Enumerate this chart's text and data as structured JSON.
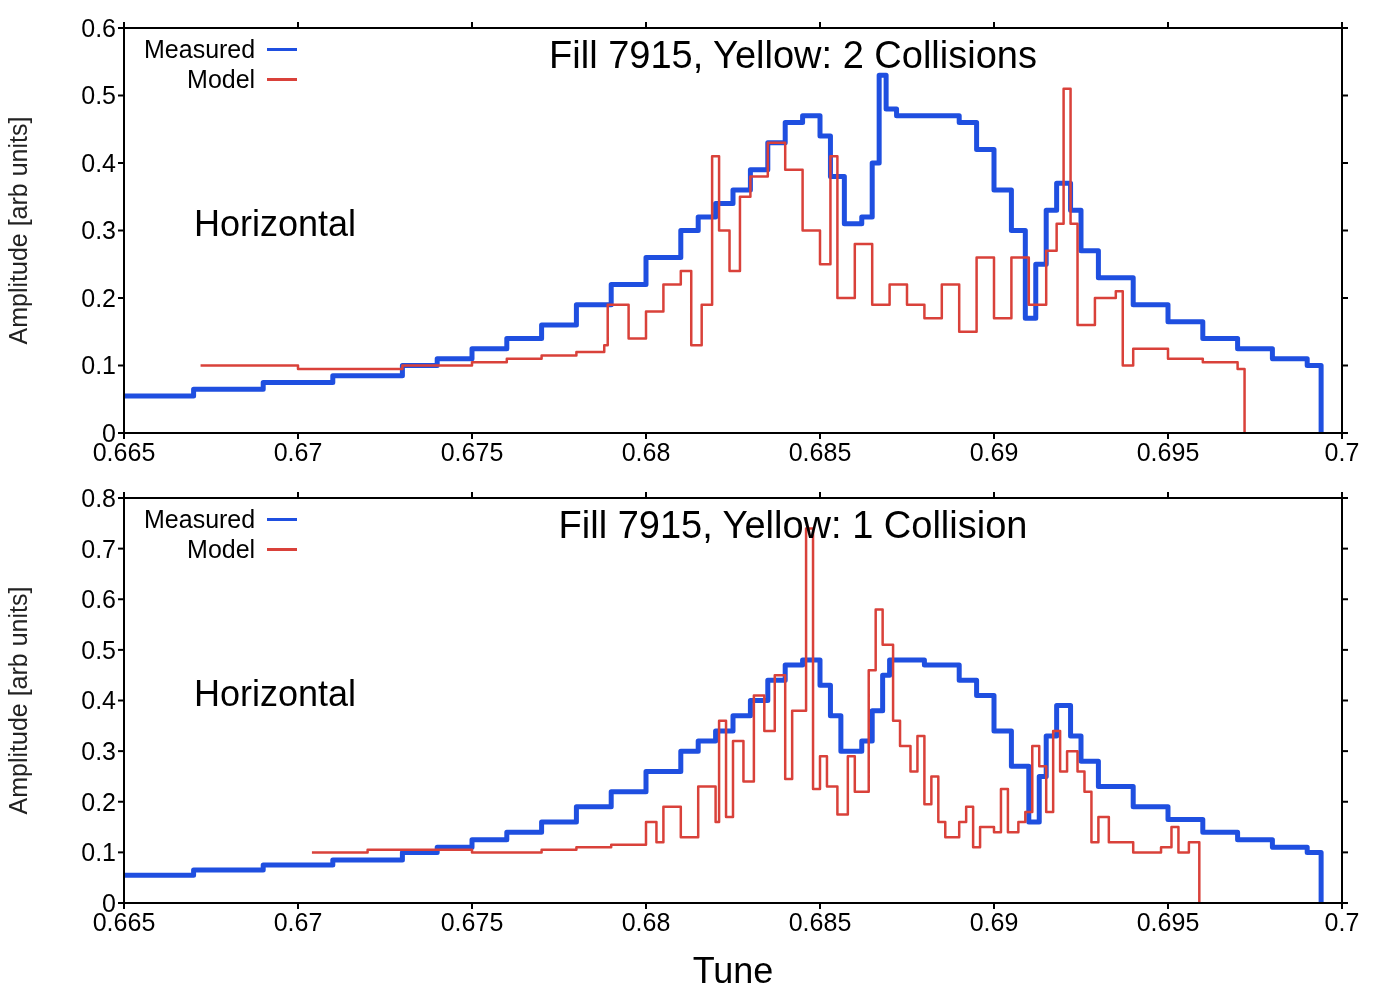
{
  "chart_data": [
    {
      "type": "step",
      "title": "Fill 7915, Yellow: 2 Collisions",
      "ylabel": "Amplitude [arb units]",
      "annotations": [
        "Horizontal"
      ],
      "legend": "top left",
      "xlim": [
        0.665,
        0.7
      ],
      "xticks": [
        0.665,
        0.67,
        0.675,
        0.68,
        0.685,
        0.69,
        0.695,
        0.7
      ],
      "ylim": [
        0,
        0.6
      ],
      "yticks": [
        0,
        0.1,
        0.2,
        0.3,
        0.4,
        0.5,
        0.6
      ],
      "series": [
        {
          "name": "Measured",
          "color": "#1f4fe0",
          "x": [
            0.665,
            0.667,
            0.669,
            0.671,
            0.673,
            0.674,
            0.675,
            0.676,
            0.677,
            0.678,
            0.679,
            0.68,
            0.681,
            0.6815,
            0.682,
            0.6825,
            0.683,
            0.6835,
            0.684,
            0.6845,
            0.685,
            0.6853,
            0.6857,
            0.6862,
            0.6865,
            0.6867,
            0.6869,
            0.6872,
            0.689,
            0.6895,
            0.69,
            0.6905,
            0.6909,
            0.6912,
            0.6915,
            0.6918,
            0.6922,
            0.6925,
            0.693,
            0.694,
            0.695,
            0.696,
            0.697,
            0.698,
            0.699,
            0.6994
          ],
          "values": [
            0.055,
            0.065,
            0.075,
            0.085,
            0.1,
            0.11,
            0.125,
            0.14,
            0.16,
            0.19,
            0.22,
            0.26,
            0.3,
            0.32,
            0.34,
            0.36,
            0.39,
            0.43,
            0.46,
            0.47,
            0.44,
            0.38,
            0.31,
            0.32,
            0.4,
            0.53,
            0.48,
            0.47,
            0.46,
            0.42,
            0.36,
            0.3,
            0.17,
            0.25,
            0.33,
            0.37,
            0.33,
            0.27,
            0.23,
            0.19,
            0.165,
            0.14,
            0.125,
            0.11,
            0.1,
            0
          ]
        },
        {
          "name": "Model",
          "color": "#d9413a",
          "x": [
            0.6672,
            0.67,
            0.673,
            0.675,
            0.676,
            0.677,
            0.678,
            0.6788,
            0.6789,
            0.6795,
            0.68,
            0.6805,
            0.681,
            0.6813,
            0.6816,
            0.6819,
            0.6821,
            0.6824,
            0.6827,
            0.683,
            0.6835,
            0.684,
            0.6845,
            0.685,
            0.6853,
            0.6855,
            0.686,
            0.6865,
            0.687,
            0.6875,
            0.688,
            0.6885,
            0.689,
            0.6895,
            0.69,
            0.6905,
            0.691,
            0.6915,
            0.6918,
            0.692,
            0.6922,
            0.6924,
            0.6929,
            0.6935,
            0.6937,
            0.694,
            0.695,
            0.696,
            0.697,
            0.6972
          ],
          "values": [
            0.1,
            0.095,
            0.1,
            0.105,
            0.11,
            0.115,
            0.12,
            0.13,
            0.19,
            0.14,
            0.18,
            0.22,
            0.24,
            0.13,
            0.19,
            0.41,
            0.3,
            0.24,
            0.35,
            0.38,
            0.43,
            0.39,
            0.3,
            0.25,
            0.41,
            0.2,
            0.28,
            0.19,
            0.22,
            0.19,
            0.17,
            0.22,
            0.15,
            0.26,
            0.17,
            0.26,
            0.19,
            0.27,
            0.31,
            0.51,
            0.31,
            0.16,
            0.2,
            0.21,
            0.1,
            0.125,
            0.11,
            0.105,
            0.095,
            0
          ]
        }
      ]
    },
    {
      "type": "step",
      "title": "Fill 7915, Yellow: 1 Collision",
      "xlabel": "Tune",
      "ylabel": "Amplitude [arb units]",
      "annotations": [
        "Horizontal"
      ],
      "legend": "top left",
      "xlim": [
        0.665,
        0.7
      ],
      "xticks": [
        0.665,
        0.67,
        0.675,
        0.68,
        0.685,
        0.69,
        0.695,
        0.7
      ],
      "ylim": [
        0,
        0.8
      ],
      "yticks": [
        0,
        0.1,
        0.2,
        0.3,
        0.4,
        0.5,
        0.6,
        0.7,
        0.8
      ],
      "series": [
        {
          "name": "Measured",
          "color": "#1f4fe0",
          "x": [
            0.665,
            0.667,
            0.669,
            0.671,
            0.673,
            0.674,
            0.675,
            0.676,
            0.677,
            0.678,
            0.679,
            0.68,
            0.681,
            0.6815,
            0.682,
            0.6825,
            0.683,
            0.6835,
            0.684,
            0.6845,
            0.685,
            0.6853,
            0.6856,
            0.6862,
            0.6865,
            0.6868,
            0.687,
            0.688,
            0.689,
            0.6895,
            0.69,
            0.6905,
            0.691,
            0.6913,
            0.6915,
            0.6918,
            0.6922,
            0.6925,
            0.693,
            0.694,
            0.695,
            0.696,
            0.697,
            0.698,
            0.699,
            0.6994
          ],
          "values": [
            0.055,
            0.065,
            0.075,
            0.085,
            0.1,
            0.11,
            0.125,
            0.14,
            0.16,
            0.19,
            0.22,
            0.26,
            0.3,
            0.32,
            0.34,
            0.37,
            0.4,
            0.44,
            0.47,
            0.48,
            0.43,
            0.37,
            0.3,
            0.32,
            0.38,
            0.45,
            0.48,
            0.47,
            0.44,
            0.41,
            0.34,
            0.27,
            0.16,
            0.25,
            0.33,
            0.39,
            0.33,
            0.28,
            0.23,
            0.19,
            0.165,
            0.14,
            0.125,
            0.11,
            0.1,
            0
          ]
        },
        {
          "name": "Model",
          "color": "#d9413a",
          "x": [
            0.6704,
            0.672,
            0.675,
            0.677,
            0.678,
            0.679,
            0.68,
            0.6803,
            0.6805,
            0.681,
            0.6815,
            0.682,
            0.6821,
            0.6823,
            0.6825,
            0.6828,
            0.6831,
            0.6834,
            0.6837,
            0.684,
            0.6842,
            0.6846,
            0.6848,
            0.685,
            0.6852,
            0.6855,
            0.6858,
            0.686,
            0.6864,
            0.6866,
            0.6868,
            0.6871,
            0.6873,
            0.6876,
            0.6878,
            0.688,
            0.6882,
            0.6884,
            0.6886,
            0.689,
            0.6892,
            0.6894,
            0.6896,
            0.69,
            0.6902,
            0.6904,
            0.6907,
            0.6909,
            0.6911,
            0.6913,
            0.6915,
            0.6917,
            0.6919,
            0.6921,
            0.6924,
            0.6926,
            0.6928,
            0.693,
            0.6933,
            0.694,
            0.6948,
            0.6951,
            0.6953,
            0.6956,
            0.6959
          ],
          "values": [
            0.1,
            0.105,
            0.1,
            0.105,
            0.11,
            0.115,
            0.16,
            0.12,
            0.19,
            0.13,
            0.23,
            0.16,
            0.36,
            0.17,
            0.32,
            0.24,
            0.41,
            0.34,
            0.45,
            0.245,
            0.38,
            0.74,
            0.225,
            0.29,
            0.23,
            0.175,
            0.29,
            0.22,
            0.46,
            0.58,
            0.51,
            0.36,
            0.31,
            0.26,
            0.33,
            0.195,
            0.25,
            0.16,
            0.13,
            0.16,
            0.19,
            0.11,
            0.15,
            0.14,
            0.225,
            0.14,
            0.16,
            0.18,
            0.31,
            0.27,
            0.18,
            0.34,
            0.26,
            0.3,
            0.26,
            0.22,
            0.12,
            0.17,
            0.12,
            0.1,
            0.11,
            0.15,
            0.1,
            0.12,
            0
          ]
        }
      ]
    }
  ]
}
